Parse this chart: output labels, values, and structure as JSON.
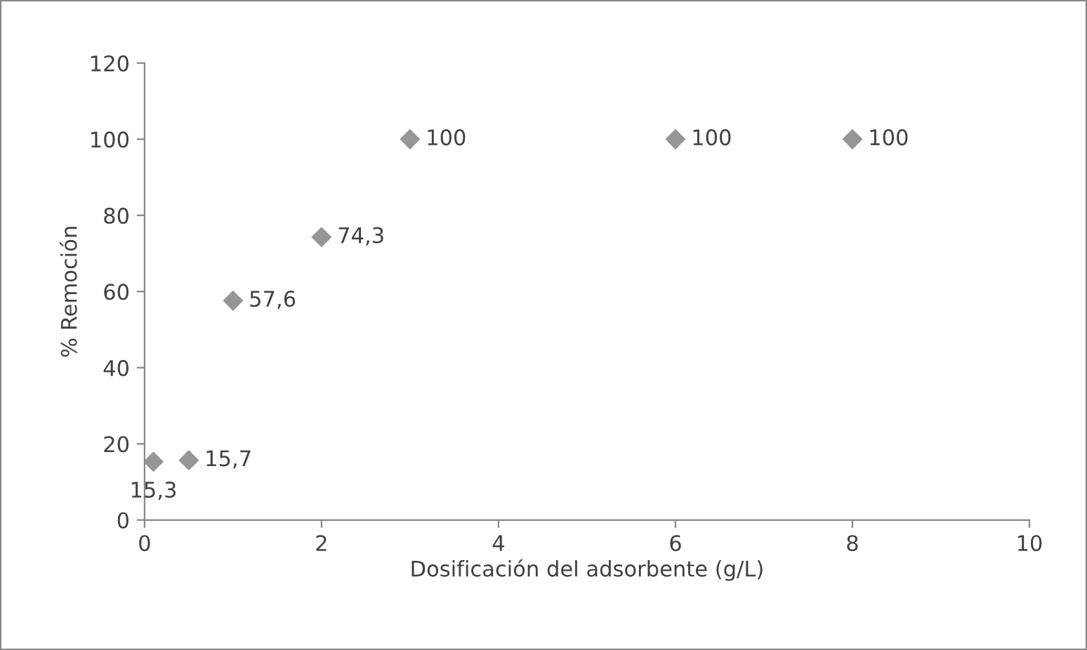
{
  "chart_data": {
    "type": "scatter",
    "xlabel": "Dosificación del adsorbente (g/L)",
    "ylabel": "% Remoción",
    "x": [
      0.1,
      0.5,
      1,
      2,
      3,
      6,
      8
    ],
    "values": [
      15.3,
      15.7,
      57.6,
      74.3,
      100,
      100,
      100
    ],
    "value_labels": [
      "15,3",
      "15,7",
      "57,6",
      "74,3",
      "100",
      "100",
      "100"
    ],
    "color": "#969696",
    "marker": "diamond",
    "grid": false,
    "legend": false,
    "xlim": [
      0,
      10
    ],
    "xticks": [
      0,
      2,
      4,
      6,
      8,
      10
    ],
    "ylim": [
      0,
      120
    ],
    "yticks": [
      0,
      20,
      40,
      60,
      80,
      100,
      120
    ]
  }
}
